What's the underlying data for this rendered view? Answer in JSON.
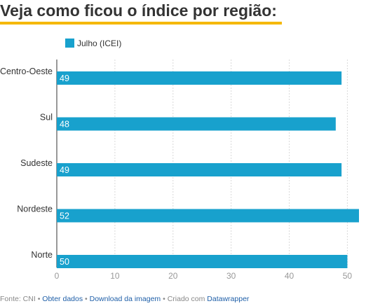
{
  "header": {
    "title": "Veja como ficou o índice por região:",
    "underline_color": "#f5b800"
  },
  "chart_data": {
    "type": "bar",
    "orientation": "horizontal",
    "categories": [
      "Centro-Oeste",
      "Sul",
      "Sudeste",
      "Nordeste",
      "Norte"
    ],
    "series": [
      {
        "name": "Julho (ICEI)",
        "values": [
          49,
          48,
          49,
          52,
          50
        ],
        "color": "#18a1cd"
      }
    ],
    "xlim": [
      0,
      52
    ],
    "xticks": [
      0,
      10,
      20,
      30,
      40,
      50
    ],
    "grid": true,
    "legend": "top-left",
    "data_labels": "inside-left"
  },
  "footer": {
    "source": "Fonte: CNI",
    "sep": " • ",
    "link_data": "Obter dados",
    "link_image": "Download da imagem",
    "created_with": "Criado com",
    "link_tool": "Datawrapper"
  }
}
